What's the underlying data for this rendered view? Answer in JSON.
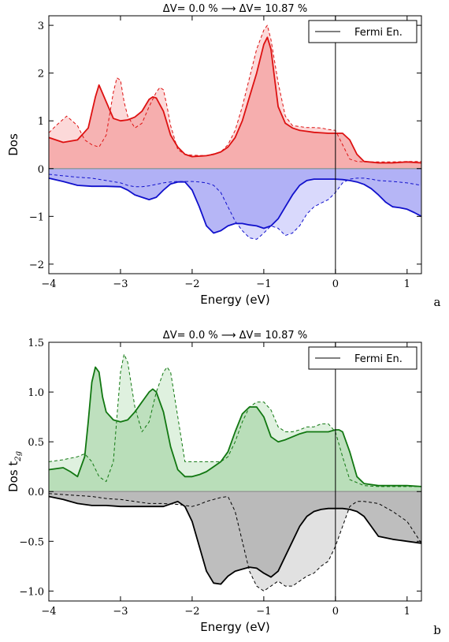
{
  "chart_data": [
    {
      "type": "area",
      "panel_label": "a",
      "title": "ΔV= 0.0 % ⟶ ΔV= 10.87 %",
      "xlabel": "Energy (eV)",
      "ylabel": "Dos",
      "xlim": [
        -4,
        1.2
      ],
      "ylim": [
        -2.2,
        3.2
      ],
      "xticks": [
        -4,
        -3,
        -2,
        -1,
        0,
        1
      ],
      "xtick_labels": [
        "−4",
        "−3",
        "−2",
        "−1",
        "0",
        "1"
      ],
      "yticks": [
        -2,
        -1,
        0,
        1,
        2,
        3
      ],
      "ytick_labels": [
        "−2",
        "−1",
        "0",
        "1",
        "2",
        "3"
      ],
      "legend": {
        "label": "Fermi En.",
        "placement": "top-right"
      },
      "fermi_energy": 0,
      "colors": {
        "up": "#dd1111",
        "up_fill": "#f4a6a6",
        "up_fill_light": "#fbd2d2",
        "down": "#1111cc",
        "down_fill": "#a9a9f4",
        "down_fill_light": "#d2d2fb",
        "zero_line": "#999999"
      },
      "series": [
        {
          "style": "solid",
          "spin": "up",
          "x": [
            -4.0,
            -3.8,
            -3.6,
            -3.45,
            -3.35,
            -3.3,
            -3.2,
            -3.1,
            -3.0,
            -2.9,
            -2.8,
            -2.7,
            -2.6,
            -2.55,
            -2.5,
            -2.4,
            -2.3,
            -2.2,
            -2.1,
            -2.0,
            -1.9,
            -1.8,
            -1.7,
            -1.6,
            -1.5,
            -1.4,
            -1.3,
            -1.2,
            -1.1,
            -1.0,
            -0.95,
            -0.9,
            -0.85,
            -0.8,
            -0.7,
            -0.6,
            -0.5,
            -0.4,
            -0.3,
            -0.2,
            -0.1,
            0.0,
            0.1,
            0.2,
            0.3,
            0.4,
            0.6,
            0.8,
            1.0,
            1.2
          ],
          "y": [
            0.65,
            0.55,
            0.6,
            0.85,
            1.5,
            1.75,
            1.4,
            1.05,
            1.0,
            1.02,
            1.08,
            1.2,
            1.45,
            1.5,
            1.48,
            1.2,
            0.7,
            0.45,
            0.3,
            0.25,
            0.26,
            0.27,
            0.3,
            0.35,
            0.45,
            0.65,
            1.0,
            1.5,
            2.0,
            2.6,
            2.75,
            2.5,
            1.9,
            1.3,
            0.95,
            0.85,
            0.8,
            0.78,
            0.76,
            0.75,
            0.74,
            0.74,
            0.74,
            0.6,
            0.3,
            0.15,
            0.12,
            0.12,
            0.14,
            0.12
          ]
        },
        {
          "style": "dashed",
          "spin": "up",
          "x": [
            -4.0,
            -3.9,
            -3.75,
            -3.6,
            -3.5,
            -3.4,
            -3.3,
            -3.2,
            -3.1,
            -3.05,
            -3.0,
            -2.95,
            -2.9,
            -2.8,
            -2.7,
            -2.6,
            -2.5,
            -2.45,
            -2.4,
            -2.35,
            -2.3,
            -2.2,
            -2.1,
            -2.0,
            -1.8,
            -1.6,
            -1.5,
            -1.4,
            -1.3,
            -1.2,
            -1.1,
            -1.0,
            -0.95,
            -0.9,
            -0.8,
            -0.7,
            -0.6,
            -0.5,
            -0.4,
            -0.3,
            -0.2,
            -0.1,
            0.0,
            0.1,
            0.2,
            0.3,
            0.4,
            0.6,
            0.8,
            1.0,
            1.2
          ],
          "y": [
            0.75,
            0.9,
            1.1,
            0.9,
            0.6,
            0.5,
            0.45,
            0.7,
            1.6,
            1.9,
            1.85,
            1.4,
            1.1,
            0.85,
            0.95,
            1.3,
            1.6,
            1.7,
            1.65,
            1.3,
            0.9,
            0.4,
            0.3,
            0.28,
            0.27,
            0.35,
            0.5,
            0.8,
            1.3,
            1.9,
            2.5,
            2.9,
            3.0,
            2.7,
            1.8,
            1.1,
            0.9,
            0.88,
            0.86,
            0.86,
            0.85,
            0.82,
            0.8,
            0.5,
            0.2,
            0.15,
            0.14,
            0.14,
            0.14,
            0.15,
            0.15
          ]
        },
        {
          "style": "solid",
          "spin": "down",
          "x": [
            -4.0,
            -3.8,
            -3.6,
            -3.4,
            -3.2,
            -3.0,
            -2.9,
            -2.8,
            -2.7,
            -2.6,
            -2.5,
            -2.4,
            -2.3,
            -2.2,
            -2.1,
            -2.0,
            -1.9,
            -1.8,
            -1.7,
            -1.6,
            -1.5,
            -1.4,
            -1.3,
            -1.2,
            -1.1,
            -1.0,
            -0.9,
            -0.8,
            -0.7,
            -0.6,
            -0.5,
            -0.4,
            -0.3,
            -0.2,
            -0.1,
            0.0,
            0.1,
            0.2,
            0.3,
            0.4,
            0.5,
            0.6,
            0.7,
            0.8,
            0.9,
            1.0,
            1.1,
            1.2
          ],
          "y": [
            -0.2,
            -0.27,
            -0.35,
            -0.37,
            -0.37,
            -0.38,
            -0.45,
            -0.55,
            -0.6,
            -0.65,
            -0.6,
            -0.45,
            -0.32,
            -0.28,
            -0.28,
            -0.45,
            -0.8,
            -1.2,
            -1.35,
            -1.3,
            -1.2,
            -1.15,
            -1.15,
            -1.18,
            -1.2,
            -1.25,
            -1.2,
            -1.05,
            -0.8,
            -0.55,
            -0.35,
            -0.25,
            -0.22,
            -0.22,
            -0.22,
            -0.22,
            -0.23,
            -0.25,
            -0.28,
            -0.33,
            -0.42,
            -0.55,
            -0.7,
            -0.8,
            -0.82,
            -0.85,
            -0.92,
            -1.0
          ]
        },
        {
          "style": "dashed",
          "spin": "down",
          "x": [
            -4.0,
            -3.8,
            -3.6,
            -3.4,
            -3.2,
            -3.0,
            -2.9,
            -2.8,
            -2.7,
            -2.6,
            -2.5,
            -2.4,
            -2.3,
            -2.2,
            -2.1,
            -2.0,
            -1.9,
            -1.8,
            -1.7,
            -1.6,
            -1.5,
            -1.4,
            -1.3,
            -1.2,
            -1.1,
            -1.0,
            -0.9,
            -0.8,
            -0.7,
            -0.6,
            -0.5,
            -0.4,
            -0.3,
            -0.2,
            -0.1,
            0.0,
            0.1,
            0.2,
            0.3,
            0.4,
            0.5,
            0.6,
            0.8,
            1.0,
            1.2
          ],
          "y": [
            -0.12,
            -0.15,
            -0.18,
            -0.2,
            -0.25,
            -0.3,
            -0.35,
            -0.38,
            -0.38,
            -0.36,
            -0.33,
            -0.3,
            -0.28,
            -0.27,
            -0.27,
            -0.27,
            -0.28,
            -0.3,
            -0.35,
            -0.5,
            -0.8,
            -1.1,
            -1.3,
            -1.45,
            -1.48,
            -1.35,
            -1.2,
            -1.25,
            -1.4,
            -1.35,
            -1.2,
            -0.95,
            -0.8,
            -0.72,
            -0.65,
            -0.5,
            -0.3,
            -0.22,
            -0.2,
            -0.2,
            -0.22,
            -0.25,
            -0.27,
            -0.3,
            -0.35
          ]
        }
      ]
    },
    {
      "type": "area",
      "panel_label": "b",
      "title": "ΔV= 0.0 % ⟶ ΔV= 10.87 %",
      "xlabel": "Energy (eV)",
      "ylabel_main": "Dos t",
      "ylabel_sub": "2g",
      "xlim": [
        -4,
        1.2
      ],
      "ylim": [
        -1.1,
        1.5
      ],
      "xticks": [
        -4,
        -3,
        -2,
        -1,
        0,
        1
      ],
      "xtick_labels": [
        "−4",
        "−3",
        "−2",
        "−1",
        "0",
        "1"
      ],
      "yticks": [
        -1.0,
        -0.5,
        0.0,
        0.5,
        1.0,
        1.5
      ],
      "ytick_labels": [
        "−1.0",
        "−0.5",
        "0.0",
        "0.5",
        "1.0",
        "1.5"
      ],
      "legend": {
        "label": "Fermi En.",
        "placement": "top-right"
      },
      "fermi_energy": 0,
      "colors": {
        "up": "#117711",
        "up_fill": "#b3dbb3",
        "up_fill_light": "#d9eed9",
        "down": "#000000",
        "down_fill": "#b3b3b3",
        "down_fill_light": "#dcdcdc",
        "zero_line": "#999999"
      },
      "series": [
        {
          "style": "solid",
          "spin": "up",
          "x": [
            -4.0,
            -3.8,
            -3.7,
            -3.6,
            -3.5,
            -3.45,
            -3.4,
            -3.35,
            -3.3,
            -3.25,
            -3.2,
            -3.1,
            -3.0,
            -2.9,
            -2.8,
            -2.7,
            -2.6,
            -2.55,
            -2.5,
            -2.4,
            -2.3,
            -2.2,
            -2.1,
            -2.0,
            -1.9,
            -1.8,
            -1.7,
            -1.6,
            -1.5,
            -1.4,
            -1.3,
            -1.2,
            -1.1,
            -1.0,
            -0.9,
            -0.8,
            -0.7,
            -0.6,
            -0.5,
            -0.4,
            -0.3,
            -0.2,
            -0.1,
            0.0,
            0.05,
            0.1,
            0.2,
            0.3,
            0.4,
            0.6,
            0.8,
            1.0,
            1.2
          ],
          "y": [
            0.22,
            0.24,
            0.2,
            0.15,
            0.35,
            0.7,
            1.1,
            1.25,
            1.2,
            0.95,
            0.8,
            0.72,
            0.7,
            0.72,
            0.8,
            0.9,
            1.0,
            1.03,
            1.0,
            0.8,
            0.45,
            0.22,
            0.15,
            0.15,
            0.17,
            0.2,
            0.25,
            0.3,
            0.4,
            0.6,
            0.78,
            0.85,
            0.85,
            0.75,
            0.55,
            0.5,
            0.52,
            0.55,
            0.58,
            0.6,
            0.6,
            0.6,
            0.6,
            0.62,
            0.62,
            0.6,
            0.4,
            0.15,
            0.08,
            0.06,
            0.06,
            0.06,
            0.05
          ]
        },
        {
          "style": "dashed",
          "spin": "up",
          "x": [
            -4.0,
            -3.8,
            -3.6,
            -3.5,
            -3.4,
            -3.3,
            -3.2,
            -3.1,
            -3.0,
            -2.95,
            -2.9,
            -2.8,
            -2.7,
            -2.6,
            -2.5,
            -2.4,
            -2.35,
            -2.3,
            -2.2,
            -2.1,
            -2.0,
            -1.9,
            -1.8,
            -1.7,
            -1.6,
            -1.5,
            -1.4,
            -1.3,
            -1.2,
            -1.1,
            -1.0,
            -0.9,
            -0.8,
            -0.7,
            -0.6,
            -0.5,
            -0.4,
            -0.3,
            -0.2,
            -0.1,
            0.0,
            0.1,
            0.2,
            0.4,
            0.6,
            0.8,
            1.0,
            1.2
          ],
          "y": [
            0.3,
            0.32,
            0.35,
            0.38,
            0.3,
            0.15,
            0.1,
            0.3,
            1.2,
            1.38,
            1.3,
            0.85,
            0.6,
            0.7,
            1.0,
            1.2,
            1.25,
            1.2,
            0.75,
            0.3,
            0.3,
            0.3,
            0.3,
            0.3,
            0.3,
            0.35,
            0.5,
            0.7,
            0.85,
            0.9,
            0.9,
            0.82,
            0.65,
            0.6,
            0.6,
            0.62,
            0.65,
            0.65,
            0.68,
            0.68,
            0.6,
            0.35,
            0.12,
            0.06,
            0.05,
            0.05,
            0.05,
            0.05
          ]
        },
        {
          "style": "solid",
          "spin": "down",
          "x": [
            -4.0,
            -3.8,
            -3.6,
            -3.4,
            -3.2,
            -3.0,
            -2.8,
            -2.6,
            -2.4,
            -2.2,
            -2.1,
            -2.0,
            -1.9,
            -1.8,
            -1.7,
            -1.6,
            -1.5,
            -1.4,
            -1.3,
            -1.2,
            -1.1,
            -1.0,
            -0.9,
            -0.8,
            -0.7,
            -0.6,
            -0.5,
            -0.4,
            -0.3,
            -0.2,
            -0.1,
            0.0,
            0.1,
            0.2,
            0.3,
            0.4,
            0.5,
            0.6,
            0.8,
            1.0,
            1.2
          ],
          "y": [
            -0.05,
            -0.08,
            -0.12,
            -0.14,
            -0.14,
            -0.15,
            -0.15,
            -0.15,
            -0.15,
            -0.1,
            -0.15,
            -0.3,
            -0.55,
            -0.8,
            -0.92,
            -0.93,
            -0.85,
            -0.8,
            -0.78,
            -0.76,
            -0.77,
            -0.82,
            -0.86,
            -0.8,
            -0.65,
            -0.5,
            -0.35,
            -0.25,
            -0.2,
            -0.18,
            -0.17,
            -0.17,
            -0.17,
            -0.18,
            -0.2,
            -0.25,
            -0.35,
            -0.45,
            -0.48,
            -0.5,
            -0.52
          ]
        },
        {
          "style": "dashed",
          "spin": "down",
          "x": [
            -4.0,
            -3.8,
            -3.6,
            -3.4,
            -3.2,
            -3.0,
            -2.8,
            -2.6,
            -2.4,
            -2.2,
            -2.0,
            -1.9,
            -1.8,
            -1.7,
            -1.6,
            -1.5,
            -1.4,
            -1.3,
            -1.2,
            -1.1,
            -1.0,
            -0.9,
            -0.8,
            -0.7,
            -0.6,
            -0.5,
            -0.4,
            -0.3,
            -0.2,
            -0.1,
            0.0,
            0.1,
            0.2,
            0.3,
            0.4,
            0.6,
            0.8,
            1.0,
            1.2
          ],
          "y": [
            -0.02,
            -0.03,
            -0.04,
            -0.05,
            -0.07,
            -0.08,
            -0.1,
            -0.12,
            -0.12,
            -0.13,
            -0.15,
            -0.13,
            -0.1,
            -0.08,
            -0.06,
            -0.05,
            -0.2,
            -0.5,
            -0.8,
            -0.95,
            -1.0,
            -0.95,
            -0.9,
            -0.95,
            -0.95,
            -0.9,
            -0.85,
            -0.82,
            -0.75,
            -0.7,
            -0.55,
            -0.35,
            -0.15,
            -0.1,
            -0.1,
            -0.12,
            -0.2,
            -0.3,
            -0.52
          ]
        }
      ]
    }
  ]
}
